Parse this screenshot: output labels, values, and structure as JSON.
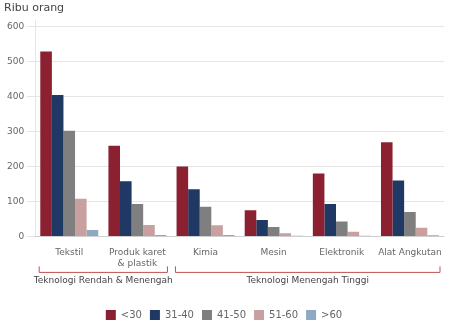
{
  "chart_data": {
    "type": "bar",
    "ylabel": "Ribu orang",
    "categories": [
      "Tekstil",
      "Produk karet\n& plastik",
      "Kimia",
      "Mesin",
      "Elektronik",
      "Alat Angkutan"
    ],
    "series": [
      {
        "name": "<30",
        "color": "#8B2030",
        "values": [
          530,
          260,
          200,
          75,
          180,
          270
        ]
      },
      {
        "name": "31-40",
        "color": "#1F3864",
        "values": [
          405,
          158,
          135,
          47,
          93,
          160
        ]
      },
      {
        "name": "41-50",
        "color": "#7F7F7F",
        "values": [
          303,
          93,
          85,
          27,
          43,
          70
        ]
      },
      {
        "name": "51-60",
        "color": "#C9A0A0",
        "values": [
          108,
          33,
          32,
          9,
          13,
          25
        ]
      },
      {
        "name": ">60",
        "color": "#8EA9C1",
        "values": [
          18,
          4,
          4,
          2,
          2,
          3
        ]
      }
    ],
    "ylim": [
      0,
      620
    ],
    "yticks": [
      0,
      100,
      200,
      300,
      400,
      500,
      600
    ],
    "grid": true,
    "legend": "bottom",
    "annotations": [
      {
        "text": "Teknologi Rendah & Menengah",
        "categories": [
          "Tekstil",
          "Produk karet\n& plastik"
        ],
        "color": "#C0504D"
      },
      {
        "text": "Teknologi Menengah Tinggi",
        "categories": [
          "Kimia",
          "Mesin",
          "Elektronik",
          "Alat Angkutan"
        ],
        "color": "#C0504D"
      }
    ]
  }
}
